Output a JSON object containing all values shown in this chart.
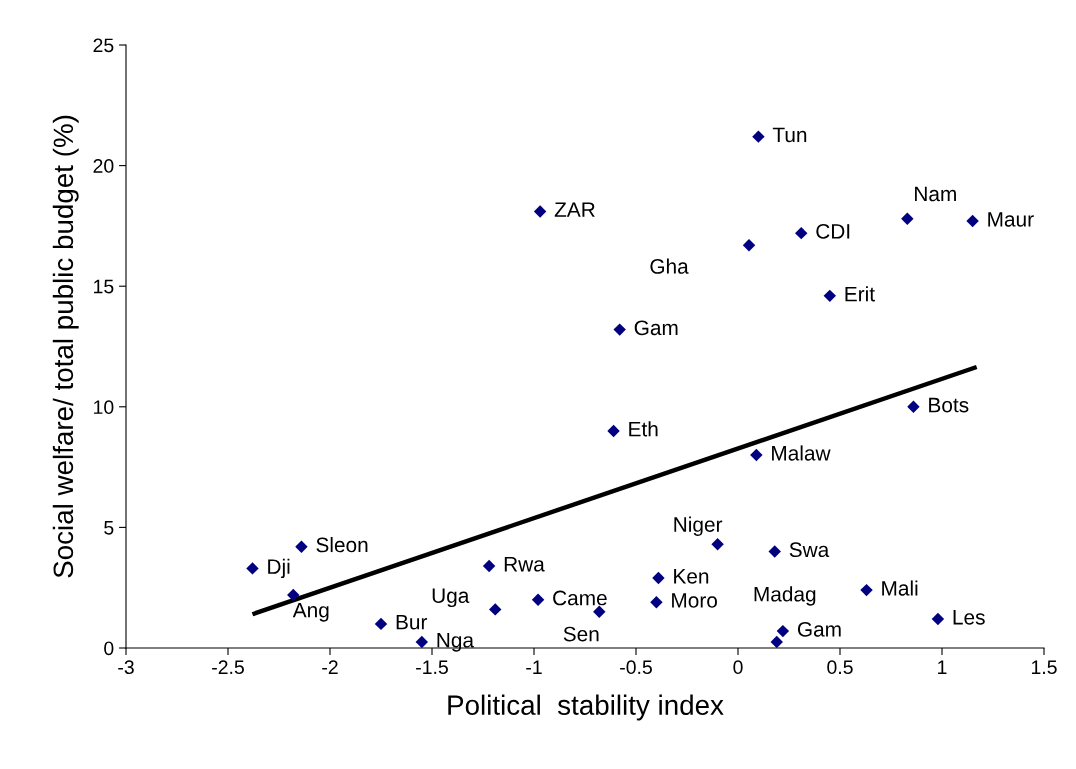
{
  "chart_data": {
    "type": "scatter",
    "xlabel": "Political  stability index",
    "ylabel": "Social welfare/ total public budget (%)",
    "xlim": [
      -3,
      1.5
    ],
    "xticks": [
      -3,
      -2.5,
      -2,
      -1.5,
      -1,
      -0.5,
      0,
      0.5,
      1,
      1.5
    ],
    "ylim": [
      0,
      25
    ],
    "yticks": [
      0,
      5,
      10,
      15,
      20,
      25
    ],
    "grid": false,
    "legend": false,
    "series": [
      {
        "marker": "diamond",
        "color": "#000080",
        "x": [
          0.1,
          -0.97,
          0.83,
          1.15,
          0.31,
          0.054,
          0.45,
          -0.58,
          0.86,
          -0.61,
          0.09,
          -0.1,
          0.18,
          -2.14,
          -2.38,
          -1.22,
          -0.39,
          0.63,
          -2.18,
          -0.98,
          -0.4,
          -1.19,
          -0.68,
          0.98,
          -1.75,
          0.22,
          0.19,
          -1.55
        ],
        "values": [
          21.2,
          18.1,
          17.8,
          17.7,
          17.2,
          16.7,
          14.6,
          13.2,
          10.0,
          9.0,
          8.0,
          4.3,
          4.0,
          4.2,
          3.3,
          3.4,
          2.9,
          2.4,
          2.2,
          2.0,
          1.9,
          1.6,
          1.5,
          1.2,
          1.0,
          0.7,
          0.25,
          0.25
        ]
      },
      {
        "type": "line",
        "color": "#000000",
        "x": [
          -2.38,
          1.17
        ],
        "values": [
          1.4,
          11.65
        ],
        "line_style": "solid"
      }
    ],
    "annotations": [
      {
        "text": "Tun",
        "x": 0.1,
        "y": 21.2
      },
      {
        "text": "ZAR",
        "x": -0.97,
        "y": 18.1
      },
      {
        "text": "Nam",
        "x": 0.83,
        "y": 17.8
      },
      {
        "text": "Maur",
        "x": 1.15,
        "y": 17.7
      },
      {
        "text": "CDI",
        "x": 0.31,
        "y": 17.2
      },
      {
        "text": "Gha",
        "x": 0.054,
        "y": 16.7
      },
      {
        "text": "Erit",
        "x": 0.45,
        "y": 14.6
      },
      {
        "text": "Gam",
        "x": -0.58,
        "y": 13.2
      },
      {
        "text": "Bots",
        "x": 0.86,
        "y": 10.0
      },
      {
        "text": "Eth",
        "x": -0.61,
        "y": 9.0
      },
      {
        "text": "Malaw",
        "x": 0.09,
        "y": 8.0
      },
      {
        "text": "Niger",
        "x": -0.1,
        "y": 4.3
      },
      {
        "text": "Swa",
        "x": 0.18,
        "y": 4.0
      },
      {
        "text": "Sleon",
        "x": -2.14,
        "y": 4.2
      },
      {
        "text": "Dji",
        "x": -2.38,
        "y": 3.3
      },
      {
        "text": "Rwa",
        "x": -1.22,
        "y": 3.4
      },
      {
        "text": "Ken",
        "x": -0.39,
        "y": 2.9
      },
      {
        "text": "Mali",
        "x": 0.63,
        "y": 2.4
      },
      {
        "text": "Ang",
        "x": -2.18,
        "y": 2.2
      },
      {
        "text": "Came",
        "x": -0.98,
        "y": 2.0
      },
      {
        "text": "Moro",
        "x": -0.4,
        "y": 1.9
      },
      {
        "text": "Uga",
        "x": -1.19,
        "y": 1.6
      },
      {
        "text": "Sen",
        "x": -0.68,
        "y": 1.5
      },
      {
        "text": "Les",
        "x": 0.98,
        "y": 1.2
      },
      {
        "text": "Bur",
        "x": -1.75,
        "y": 1.0
      },
      {
        "text": "Gam",
        "x": 0.22,
        "y": 0.7
      },
      {
        "text": "Madag",
        "x": 0.19,
        "y": 0.25
      },
      {
        "text": "Nga",
        "x": -1.55,
        "y": 0.25
      }
    ]
  }
}
